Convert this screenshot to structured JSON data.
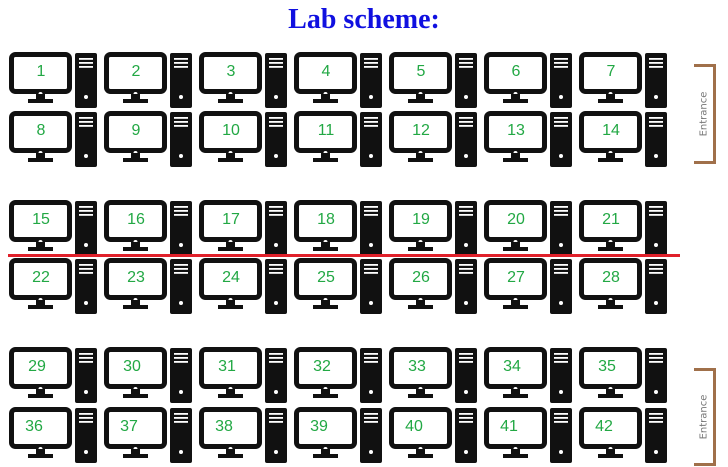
{
  "title": "Lab scheme:",
  "entrance_label": "Entrance",
  "layout": {
    "rows": [
      [
        "1",
        "2",
        "3",
        "4",
        "5",
        "6",
        "7"
      ],
      [
        "8",
        "9",
        "10",
        "11",
        "12",
        "13",
        "14"
      ],
      [
        "15",
        "16",
        "17",
        "18",
        "19",
        "20",
        "21"
      ],
      [
        "22",
        "23",
        "24",
        "25",
        "26",
        "27",
        "28"
      ],
      [
        "29",
        "30",
        "31",
        "32",
        "33",
        "34",
        "35"
      ],
      [
        "36",
        "37",
        "38",
        "39",
        "40",
        "41",
        "42"
      ]
    ]
  },
  "colors": {
    "title": "#1010e0",
    "station_number": "#22a844",
    "divider": "#e0202a",
    "entrance_frame": "#a0704a"
  }
}
